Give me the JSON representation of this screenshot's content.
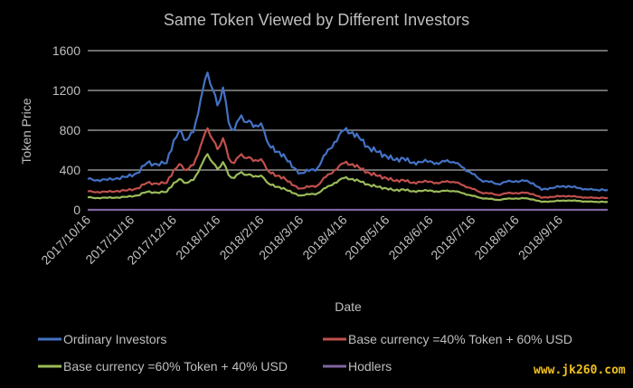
{
  "chart_data": {
    "type": "line",
    "title": "Same Token Viewed by Different Investors",
    "xlabel": "Date",
    "ylabel": "Token Price",
    "ylim": [
      0,
      1600
    ],
    "yticks": [
      0,
      400,
      800,
      1200,
      1600
    ],
    "xlim": [
      "2017-10-16",
      "2018-10-20"
    ],
    "xtick_labels": [
      "2017/10/16",
      "2017/11/16",
      "2017/12/16",
      "2018/1/16",
      "2018/2/16",
      "2018/3/16",
      "2018/4/16",
      "2018/5/16",
      "2018/6/16",
      "2018/7/16",
      "2018/8/16",
      "2018/9/16"
    ],
    "xtick_dates": [
      "2017-10-16",
      "2017-11-16",
      "2017-12-16",
      "2018-01-16",
      "2018-02-16",
      "2018-03-16",
      "2018-04-16",
      "2018-05-16",
      "2018-06-16",
      "2018-07-16",
      "2018-08-16",
      "2018-09-16"
    ],
    "grid": true,
    "legend_position": "bottom",
    "series": [
      {
        "name": "Ordinary Investors",
        "color": "#4472c4",
        "x": [
          "2017-10-16",
          "2017-10-23",
          "2017-10-30",
          "2017-11-06",
          "2017-11-13",
          "2017-11-20",
          "2017-11-27",
          "2017-12-04",
          "2017-12-11",
          "2017-12-16",
          "2017-12-20",
          "2017-12-25",
          "2017-12-30",
          "2018-01-04",
          "2018-01-09",
          "2018-01-13",
          "2018-01-16",
          "2018-01-20",
          "2018-01-24",
          "2018-01-28",
          "2018-02-02",
          "2018-02-06",
          "2018-02-12",
          "2018-02-16",
          "2018-02-20",
          "2018-02-26",
          "2018-03-04",
          "2018-03-10",
          "2018-03-16",
          "2018-03-22",
          "2018-03-28",
          "2018-04-03",
          "2018-04-09",
          "2018-04-16",
          "2018-04-22",
          "2018-04-28",
          "2018-05-04",
          "2018-05-10",
          "2018-05-16",
          "2018-05-22",
          "2018-05-28",
          "2018-06-03",
          "2018-06-09",
          "2018-06-16",
          "2018-06-22",
          "2018-06-28",
          "2018-07-04",
          "2018-07-10",
          "2018-07-16",
          "2018-07-22",
          "2018-07-28",
          "2018-08-03",
          "2018-08-09",
          "2018-08-16",
          "2018-08-22",
          "2018-08-28",
          "2018-09-03",
          "2018-09-09",
          "2018-09-16",
          "2018-09-22",
          "2018-09-28",
          "2018-10-04",
          "2018-10-10",
          "2018-10-20"
        ],
        "values": [
          310,
          300,
          300,
          320,
          330,
          370,
          470,
          460,
          470,
          700,
          800,
          700,
          780,
          1100,
          1380,
          1200,
          1050,
          1230,
          880,
          800,
          950,
          880,
          850,
          870,
          700,
          580,
          560,
          430,
          370,
          390,
          420,
          560,
          680,
          800,
          780,
          700,
          620,
          580,
          540,
          500,
          520,
          470,
          480,
          490,
          460,
          500,
          470,
          420,
          360,
          300,
          280,
          260,
          280,
          290,
          290,
          270,
          200,
          220,
          230,
          240,
          220,
          210,
          200,
          200
        ]
      },
      {
        "name": "Base currency =40% Token + 60% USD",
        "color": "#c0504d",
        "x": [
          "2017-10-16",
          "2017-10-23",
          "2017-10-30",
          "2017-11-06",
          "2017-11-13",
          "2017-11-20",
          "2017-11-27",
          "2017-12-04",
          "2017-12-11",
          "2017-12-16",
          "2017-12-20",
          "2017-12-25",
          "2017-12-30",
          "2018-01-04",
          "2018-01-09",
          "2018-01-13",
          "2018-01-16",
          "2018-01-20",
          "2018-01-24",
          "2018-01-28",
          "2018-02-02",
          "2018-02-06",
          "2018-02-12",
          "2018-02-16",
          "2018-02-20",
          "2018-02-26",
          "2018-03-04",
          "2018-03-10",
          "2018-03-16",
          "2018-03-22",
          "2018-03-28",
          "2018-04-03",
          "2018-04-09",
          "2018-04-16",
          "2018-04-22",
          "2018-04-28",
          "2018-05-04",
          "2018-05-10",
          "2018-05-16",
          "2018-05-22",
          "2018-05-28",
          "2018-06-03",
          "2018-06-09",
          "2018-06-16",
          "2018-06-22",
          "2018-06-28",
          "2018-07-04",
          "2018-07-10",
          "2018-07-16",
          "2018-07-22",
          "2018-07-28",
          "2018-08-03",
          "2018-08-09",
          "2018-08-16",
          "2018-08-22",
          "2018-08-28",
          "2018-09-03",
          "2018-09-09",
          "2018-09-16",
          "2018-09-22",
          "2018-09-28",
          "2018-10-04",
          "2018-10-10",
          "2018-10-20"
        ],
        "values": [
          185,
          180,
          180,
          190,
          195,
          215,
          270,
          265,
          270,
          400,
          460,
          400,
          450,
          640,
          820,
          700,
          610,
          720,
          520,
          470,
          560,
          520,
          500,
          510,
          410,
          340,
          330,
          250,
          215,
          230,
          245,
          330,
          400,
          470,
          460,
          410,
          370,
          340,
          320,
          290,
          300,
          270,
          280,
          285,
          265,
          290,
          275,
          245,
          210,
          175,
          165,
          150,
          165,
          170,
          170,
          160,
          120,
          130,
          135,
          140,
          130,
          125,
          120,
          120
        ]
      },
      {
        "name": "Base currency =60% Token + 40% USD",
        "color": "#9bbb59",
        "x": [
          "2017-10-16",
          "2017-10-23",
          "2017-10-30",
          "2017-11-06",
          "2017-11-13",
          "2017-11-20",
          "2017-11-27",
          "2017-12-04",
          "2017-12-11",
          "2017-12-16",
          "2017-12-20",
          "2017-12-25",
          "2017-12-30",
          "2018-01-04",
          "2018-01-09",
          "2018-01-13",
          "2018-01-16",
          "2018-01-20",
          "2018-01-24",
          "2018-01-28",
          "2018-02-02",
          "2018-02-06",
          "2018-02-12",
          "2018-02-16",
          "2018-02-20",
          "2018-02-26",
          "2018-03-04",
          "2018-03-10",
          "2018-03-16",
          "2018-03-22",
          "2018-03-28",
          "2018-04-03",
          "2018-04-09",
          "2018-04-16",
          "2018-04-22",
          "2018-04-28",
          "2018-05-04",
          "2018-05-10",
          "2018-05-16",
          "2018-05-22",
          "2018-05-28",
          "2018-06-03",
          "2018-06-09",
          "2018-06-16",
          "2018-06-22",
          "2018-06-28",
          "2018-07-04",
          "2018-07-10",
          "2018-07-16",
          "2018-07-22",
          "2018-07-28",
          "2018-08-03",
          "2018-08-09",
          "2018-08-16",
          "2018-08-22",
          "2018-08-28",
          "2018-09-03",
          "2018-09-09",
          "2018-09-16",
          "2018-09-22",
          "2018-09-28",
          "2018-10-04",
          "2018-10-10",
          "2018-10-20"
        ],
        "values": [
          125,
          120,
          120,
          125,
          130,
          145,
          180,
          175,
          180,
          270,
          310,
          270,
          300,
          430,
          560,
          470,
          410,
          480,
          350,
          320,
          380,
          350,
          340,
          345,
          280,
          230,
          220,
          170,
          145,
          155,
          165,
          220,
          270,
          320,
          310,
          280,
          250,
          230,
          215,
          195,
          205,
          185,
          190,
          195,
          180,
          195,
          185,
          165,
          140,
          120,
          110,
          100,
          110,
          115,
          115,
          105,
          80,
          85,
          90,
          95,
          90,
          85,
          80,
          80
        ]
      },
      {
        "name": "Hodlers",
        "color": "#8064a2",
        "x": [
          "2017-10-16",
          "2018-10-20"
        ],
        "values": [
          0,
          0
        ]
      }
    ]
  },
  "watermark": "www.jk260.com"
}
